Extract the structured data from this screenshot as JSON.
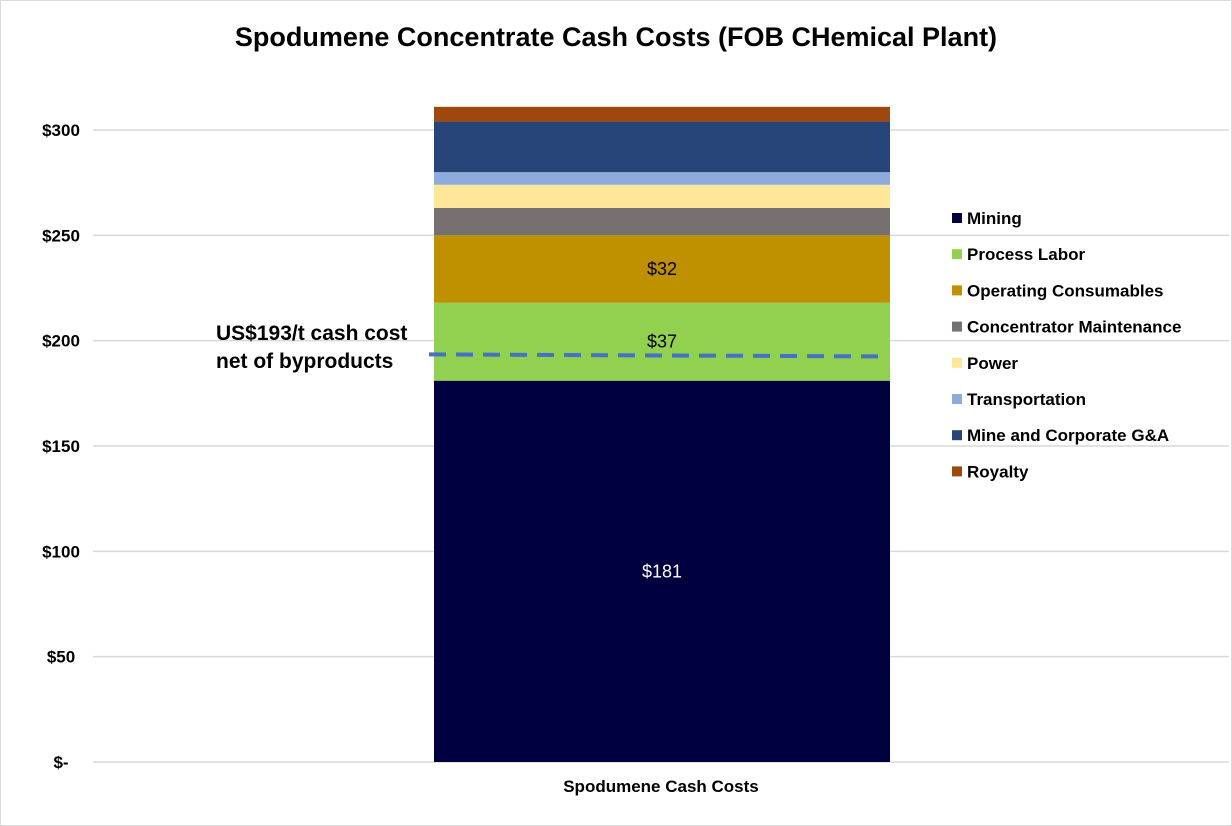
{
  "chart_data": {
    "type": "bar",
    "stacked": true,
    "title": "Spodumene Concentrate Cash Costs (FOB CHemical Plant)",
    "categories": [
      "Spodumene Cash Costs"
    ],
    "ylim": [
      0,
      300
    ],
    "y_ticks": [
      0,
      50,
      100,
      150,
      200,
      250,
      300
    ],
    "y_tick_labels": [
      "$-",
      "$50",
      "$100",
      "$150",
      "$200",
      "$250",
      "$300"
    ],
    "grid": true,
    "legend_position": "right",
    "series": [
      {
        "name": "Mining",
        "values": [
          181
        ],
        "color": "#000040",
        "data_label": "$181",
        "label_color": "#ffffff"
      },
      {
        "name": "Process Labor",
        "values": [
          37
        ],
        "color": "#92d050",
        "data_label": "$37",
        "label_color": "#000000"
      },
      {
        "name": "Operating Consumables",
        "values": [
          32
        ],
        "color": "#bf9000",
        "data_label": "$32",
        "label_color": "#000000"
      },
      {
        "name": "Concentrator Maintenance",
        "values": [
          13
        ],
        "color": "#767171",
        "data_label": "",
        "label_color": "#000000"
      },
      {
        "name": "Power",
        "values": [
          11
        ],
        "color": "#ffe699",
        "data_label": "",
        "label_color": "#000000"
      },
      {
        "name": "Transportation",
        "values": [
          6
        ],
        "color": "#8faadc",
        "data_label": "",
        "label_color": "#000000"
      },
      {
        "name": "Mine and Corporate G&A",
        "values": [
          24
        ],
        "color": "#264478",
        "data_label": "",
        "label_color": "#000000"
      },
      {
        "name": "Royalty",
        "values": [
          7
        ],
        "color": "#9e480e",
        "data_label": "",
        "label_color": "#000000"
      }
    ],
    "reference_line": {
      "value": 193,
      "color": "#4472c4",
      "style": "dashed",
      "annotation": [
        "US$193/t cash cost",
        "net of byproducts"
      ]
    }
  }
}
